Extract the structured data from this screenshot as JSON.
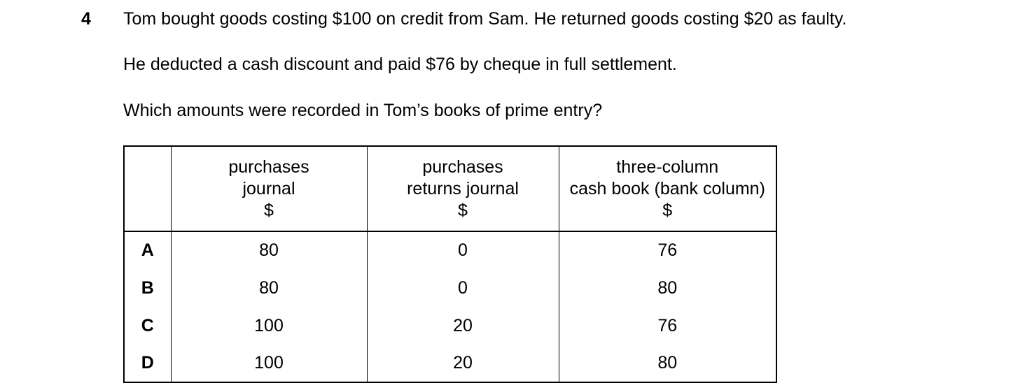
{
  "question": {
    "number": "4",
    "lines": [
      "Tom bought goods costing $100 on credit from Sam. He returned goods costing $20 as faulty.",
      "He deducted a cash discount and paid $76 by cheque in full settlement.",
      "Which amounts were recorded in Tom’s books of prime entry?"
    ]
  },
  "table": {
    "headers": [
      {
        "lines": [
          "purchases",
          "journal",
          "$"
        ]
      },
      {
        "lines": [
          "purchases",
          "returns journal",
          "$"
        ]
      },
      {
        "lines": [
          "three-column",
          "cash book (bank column)",
          "$"
        ]
      }
    ],
    "rows": [
      {
        "option": "A",
        "values": [
          "80",
          "0",
          "76"
        ]
      },
      {
        "option": "B",
        "values": [
          "80",
          "0",
          "80"
        ]
      },
      {
        "option": "C",
        "values": [
          "100",
          "20",
          "76"
        ]
      },
      {
        "option": "D",
        "values": [
          "100",
          "20",
          "80"
        ]
      }
    ]
  },
  "colors": {
    "text": "#000000",
    "background": "#ffffff",
    "border": "#000000"
  }
}
